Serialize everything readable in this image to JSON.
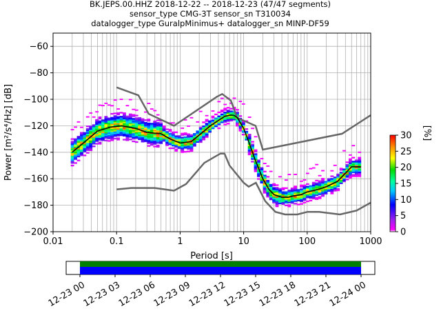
{
  "title": {
    "line1": "BK.JEPS.00.HHZ   2018-12-22 -- 2018-12-23  (47/47 segments)",
    "line2": "sensor_type CMG-3T sensor_sn T310034",
    "line3": "datalogger_type GuralpMinimus+ datalogger_sn MINP-DF59"
  },
  "chart_data": [
    {
      "type": "heatmap",
      "xlabel": "Period [s]",
      "ylabel": "Power [m²/s⁴/Hz] [dB]",
      "xscale": "log",
      "xlim": [
        0.01,
        1000
      ],
      "ylim": [
        -200,
        -50
      ],
      "xticks": [
        "0.01",
        "0.1",
        "1",
        "10",
        "100",
        "1000"
      ],
      "yticks": [
        "−60",
        "−80",
        "−100",
        "−120",
        "−140",
        "−160",
        "−180",
        "−200"
      ],
      "grid": true,
      "colorbar": {
        "label": "[%]",
        "range": [
          0,
          30
        ],
        "ticks": [
          "0",
          "5",
          "10",
          "15",
          "20",
          "25",
          "30"
        ],
        "colormap": "pqlx"
      },
      "mode_curve": {
        "period": [
          0.02,
          0.03,
          0.05,
          0.08,
          0.12,
          0.2,
          0.3,
          0.5,
          0.7,
          1,
          1.5,
          2,
          3,
          4,
          5,
          6,
          7,
          8,
          10,
          12,
          15,
          20,
          25,
          30,
          40,
          50,
          60,
          80,
          100,
          150,
          200,
          300,
          500,
          700
        ],
        "power": [
          -140,
          -133,
          -124,
          -121,
          -120,
          -122,
          -125,
          -126,
          -130,
          -133,
          -132,
          -127,
          -120,
          -116,
          -113,
          -112,
          -112,
          -114,
          -122,
          -132,
          -145,
          -160,
          -168,
          -172,
          -174,
          -174,
          -173,
          -172,
          -170,
          -168,
          -166,
          -162,
          -151,
          -151
        ]
      },
      "nlnm": {
        "period": [
          0.1,
          0.17,
          0.4,
          0.8,
          1.24,
          2.4,
          4.3,
          5,
          6,
          10,
          12,
          15.6,
          21.9,
          31.6,
          45,
          70,
          101,
          154,
          328,
          600,
          1000
        ],
        "power": [
          -168,
          -167,
          -167,
          -169,
          -164,
          -148,
          -141,
          -141,
          -150,
          -163,
          -166,
          -163,
          -177,
          -185,
          -187,
          -187,
          -185,
          -185,
          -187,
          -184,
          -178
        ]
      },
      "nhnm": {
        "period": [
          0.1,
          0.22,
          0.32,
          0.8,
          3.8,
          4.6,
          6.3,
          7.9,
          15.4,
          20,
          354.8,
          1000
        ],
        "power": [
          -91,
          -97,
          -111,
          -120,
          -98,
          -96,
          -101,
          -114,
          -120,
          -138,
          -126,
          -112
        ]
      }
    },
    {
      "type": "bar",
      "description_axis": "time",
      "xticks": [
        "12-23 00",
        "12-23 03",
        "12-23 06",
        "12-23 09",
        "12-23 12",
        "12-23 15",
        "12-23 18",
        "12-23 21",
        "12-24 00"
      ],
      "series": [
        {
          "color": "#008000",
          "segments": [
            [
              "12-23 00",
              "12-24 00"
            ]
          ]
        },
        {
          "color": "#0000ff",
          "segments": [
            [
              "12-23 00",
              "12-24 00"
            ]
          ]
        }
      ]
    }
  ],
  "colors": {
    "grid": "#b0b0b0",
    "model_line": "#666666",
    "mode_line": "#000000"
  }
}
